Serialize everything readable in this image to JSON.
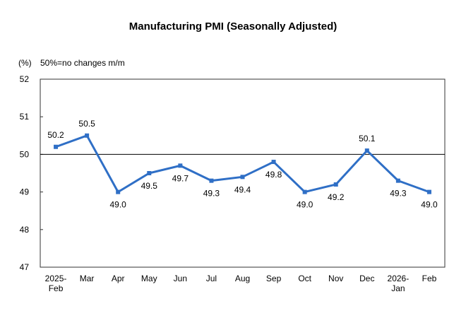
{
  "chart_data": {
    "type": "line",
    "title": "Manufacturing PMI (Seasonally Adjusted)",
    "ylabel": "(%)",
    "annotation": "50%=no changes m/m",
    "categories": [
      [
        "2025-",
        "Feb"
      ],
      [
        "Mar"
      ],
      [
        "Apr"
      ],
      [
        "May"
      ],
      [
        "Jun"
      ],
      [
        "Jul"
      ],
      [
        "Aug"
      ],
      [
        "Sep"
      ],
      [
        "Oct"
      ],
      [
        "Nov"
      ],
      [
        "Dec"
      ],
      [
        "2026-",
        "Jan"
      ],
      [
        "Feb"
      ]
    ],
    "series": [
      {
        "name": "Manufacturing PMI",
        "color": "#2f6fc6",
        "values": [
          50.2,
          50.5,
          49.0,
          49.5,
          49.7,
          49.3,
          49.4,
          49.8,
          49.0,
          49.2,
          50.1,
          49.3,
          49.0
        ],
        "labels": [
          "50.2",
          "50.5",
          "49.0",
          "49.5",
          "49.7",
          "49.3",
          "49.4",
          "49.8",
          "49.0",
          "49.2",
          "50.1",
          "49.3",
          "49.0"
        ],
        "label_position": [
          "above",
          "above",
          "below",
          "below",
          "below",
          "below",
          "below",
          "below",
          "below",
          "below",
          "above",
          "below",
          "below"
        ]
      }
    ],
    "ylim": [
      47,
      52
    ],
    "yticks": [
      "47",
      "48",
      "49",
      "50",
      "51",
      "52"
    ],
    "reference_line": 50,
    "grid": false,
    "legend": "none"
  }
}
